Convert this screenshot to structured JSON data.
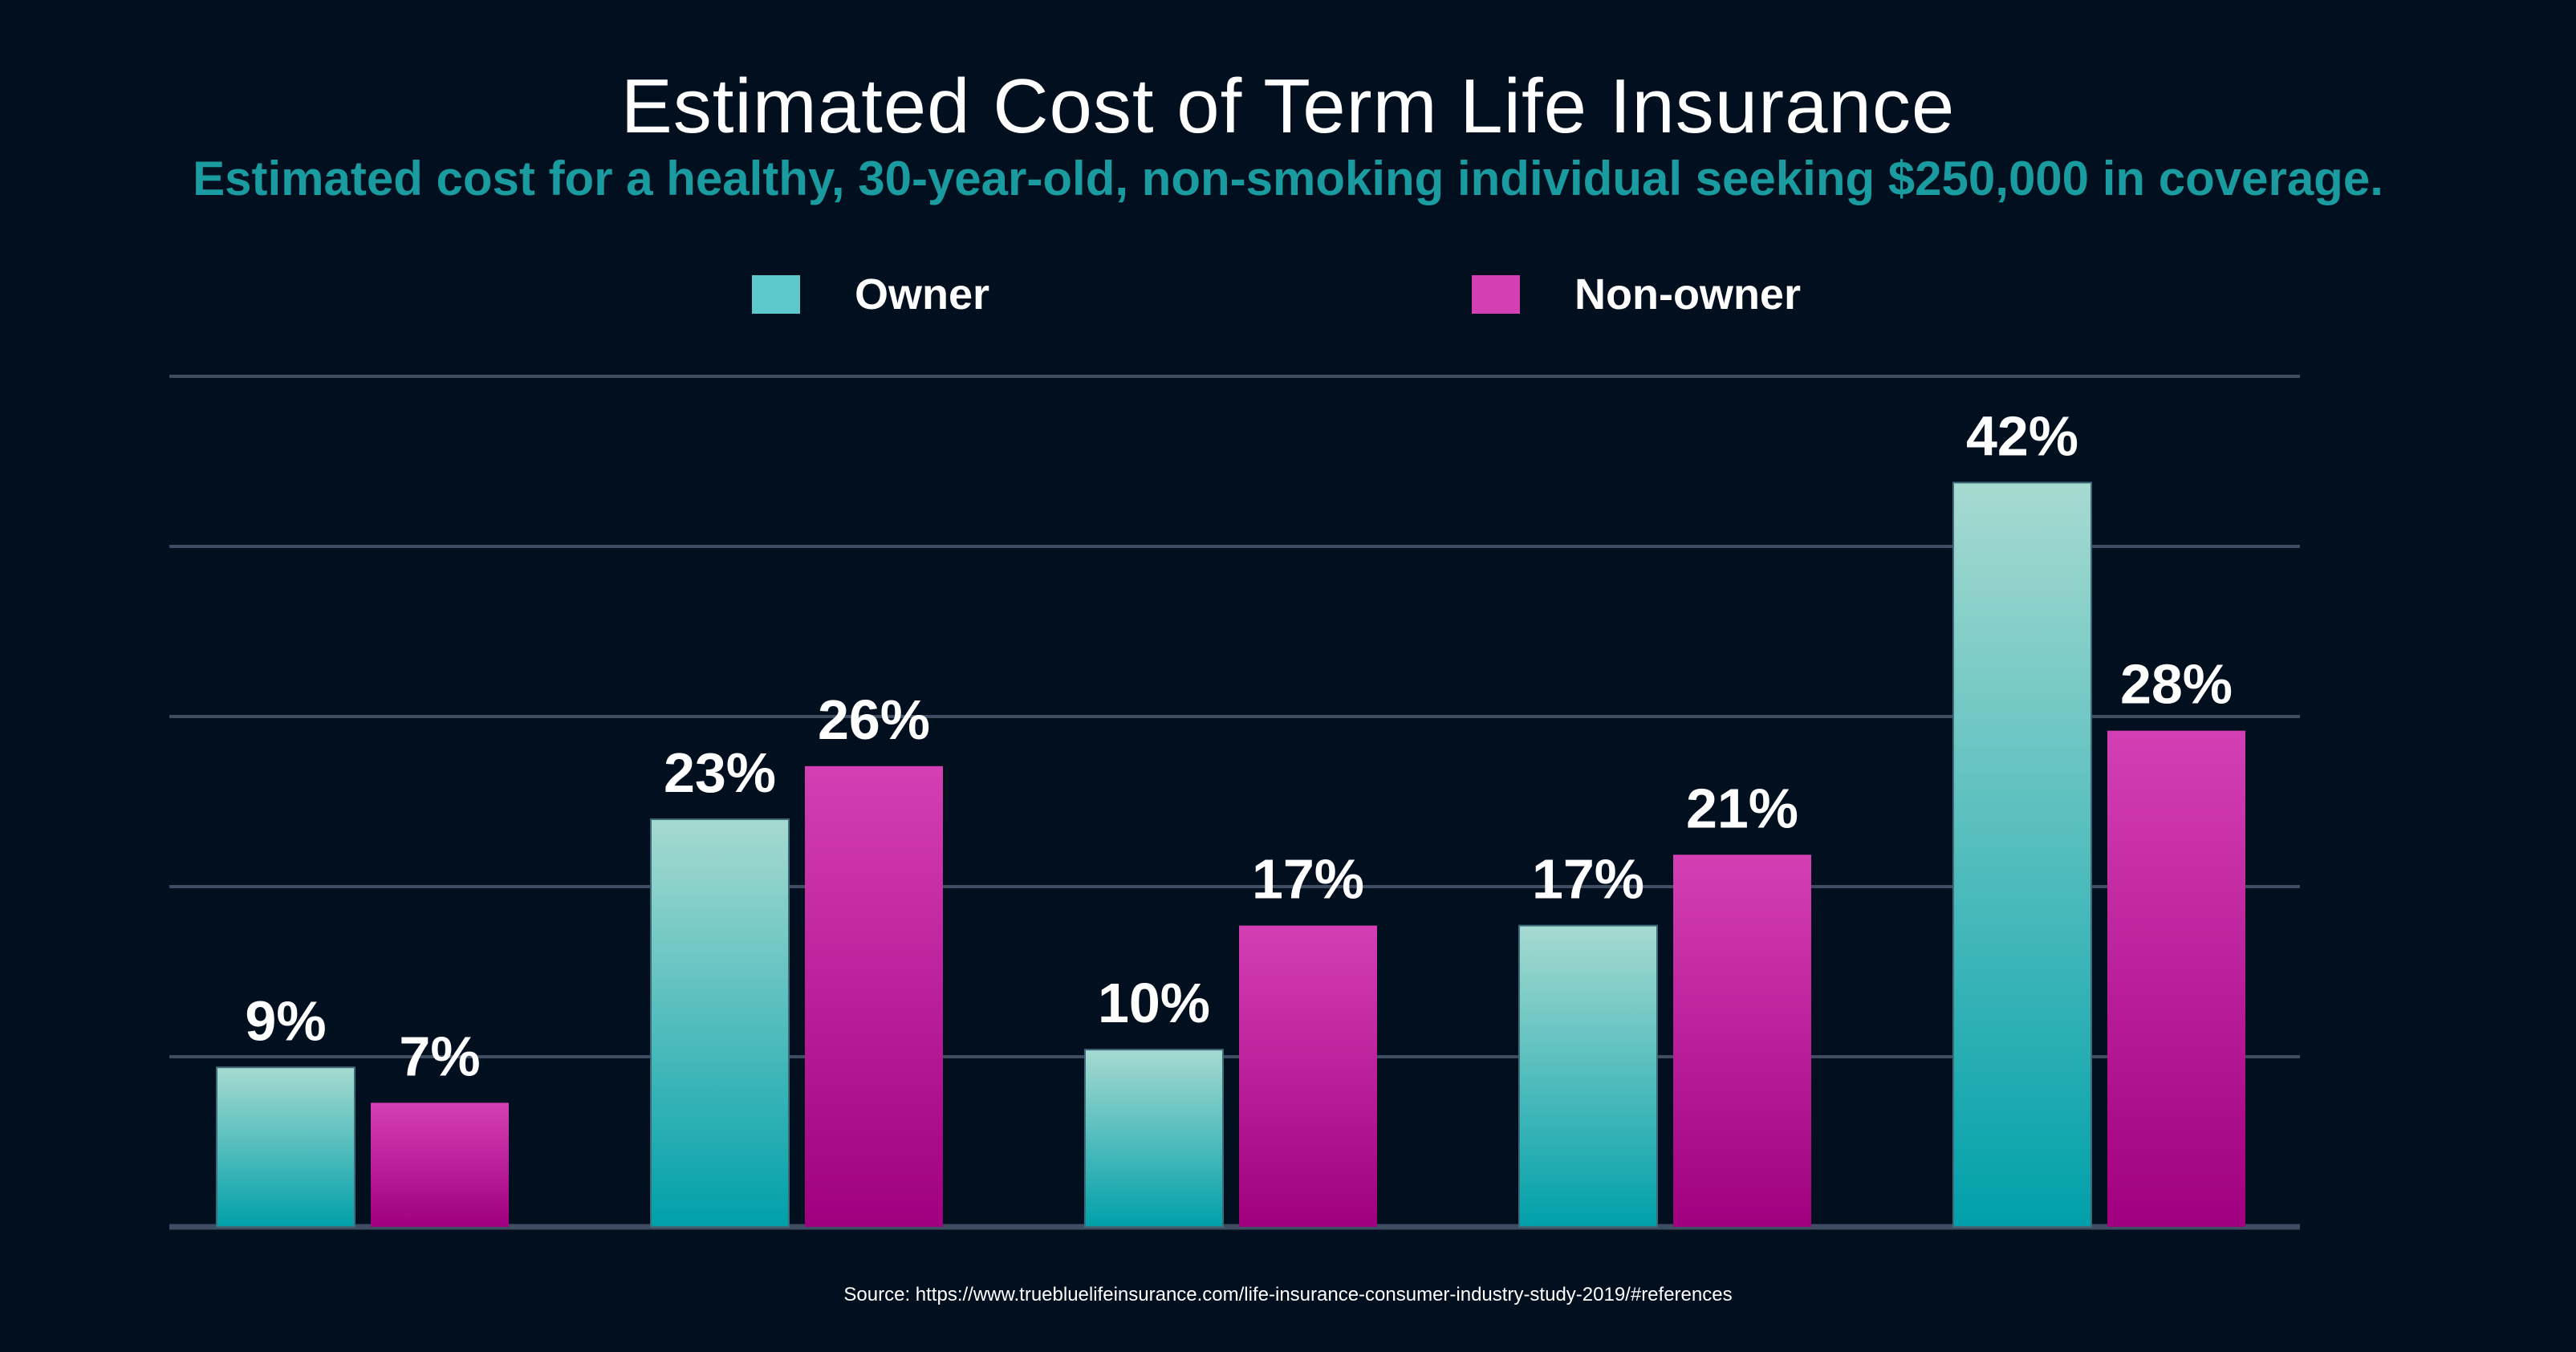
{
  "chart_data": {
    "type": "bar",
    "title": "Estimated Cost of Term Life Insurance",
    "subtitle": "Estimated cost for a healthy, 30-year-old, non-smoking individual seeking $250,000 in coverage.",
    "categories": [
      "",
      "",
      "",
      "",
      ""
    ],
    "series": [
      {
        "name": "Owner",
        "values": [
          9,
          23,
          10,
          17,
          42
        ],
        "labels": [
          "9%",
          "23%",
          "10%",
          "17%",
          "42%"
        ],
        "color_top": "#a6dad0",
        "color_bottom": "#00a0aa"
      },
      {
        "name": "Non-owner",
        "values": [
          7,
          26,
          17,
          21,
          28
        ],
        "labels": [
          "7%",
          "26%",
          "17%",
          "21%",
          "28%"
        ],
        "color_top": "#d43fb4",
        "color_bottom": "#a0007f"
      }
    ],
    "legend_swatches": [
      "#5cc8cc",
      "#d43fb4"
    ],
    "ylim": [
      0,
      48
    ],
    "grid": true,
    "legend_position": "top-center",
    "xlabel": "",
    "ylabel": "",
    "source": "Source: https://www.truebluelifeinsurance.com/life-insurance-consumer-industry-study-2019/#references"
  },
  "colors": {
    "background": "#010f1f",
    "gridline": "#3e4d62",
    "subtitle": "#1a9ba0"
  }
}
